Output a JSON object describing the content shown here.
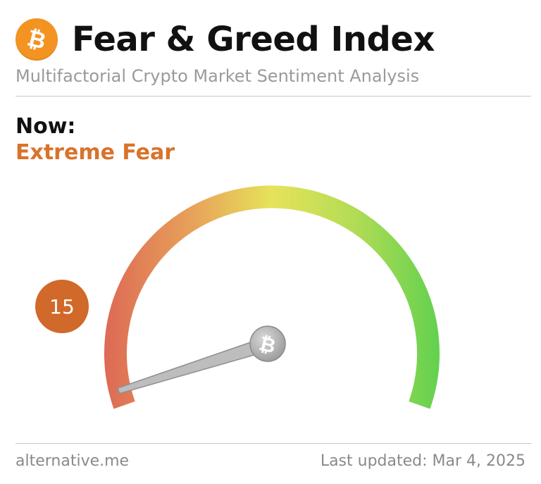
{
  "header": {
    "title": "Fear & Greed Index",
    "subtitle": "Multifactorial Crypto Market Sentiment Analysis",
    "logo_icon": "bitcoin-icon",
    "logo_color": "#f39321"
  },
  "status": {
    "now_label": "Now:",
    "classification": "Extreme Fear",
    "classification_color": "#d8732c"
  },
  "gauge": {
    "value": 15,
    "value_label": "15",
    "min": 0,
    "max": 100,
    "badge_color": "#d0692a",
    "colors": {
      "fear": "#dd6a55",
      "neutral": "#e6e35a",
      "greed": "#63d14f"
    },
    "center_icon": "bitcoin-icon"
  },
  "footer": {
    "source": "alternative.me",
    "last_updated": "Last updated: Mar 4, 2025"
  }
}
